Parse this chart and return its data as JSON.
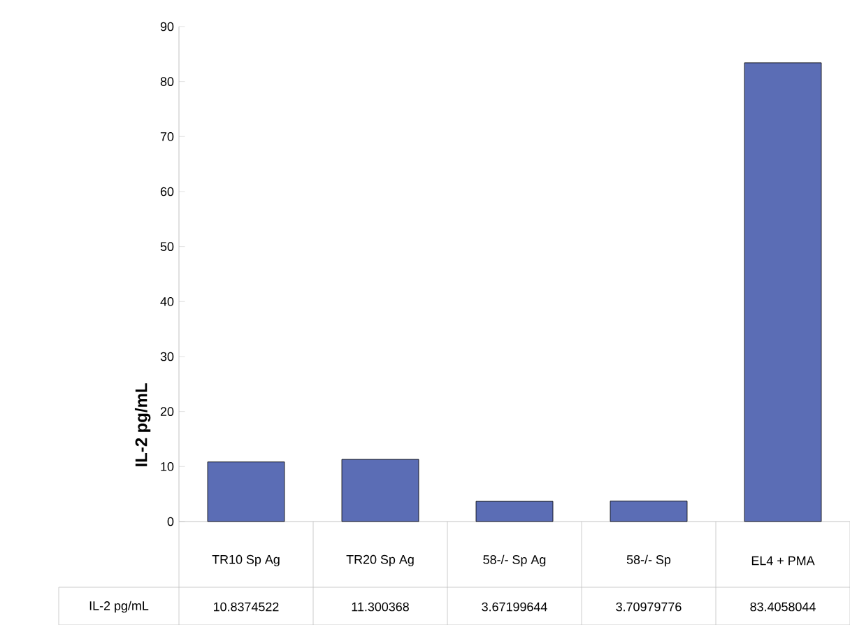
{
  "chart_data": {
    "type": "bar",
    "ylabel": "IL-2 pg/mL",
    "categories": [
      "TR10 Sp Ag",
      "TR20 Sp Ag",
      "58-/- Sp Ag",
      "58-/- Sp",
      "EL4 + PMA"
    ],
    "series": [
      {
        "name": "IL-2 pg/mL",
        "color": "#5b6db5",
        "values": [
          10.8374522,
          11.300368,
          3.67199644,
          3.70979776,
          83.4058044
        ],
        "value_labels": [
          "10.8374522",
          "11.300368",
          "3.67199644",
          "3.70979776",
          "83.4058044"
        ]
      }
    ],
    "ylim": [
      0,
      90
    ],
    "yticks": [
      0,
      10,
      20,
      30,
      40,
      50,
      60,
      70,
      80,
      90
    ],
    "grid": false
  }
}
